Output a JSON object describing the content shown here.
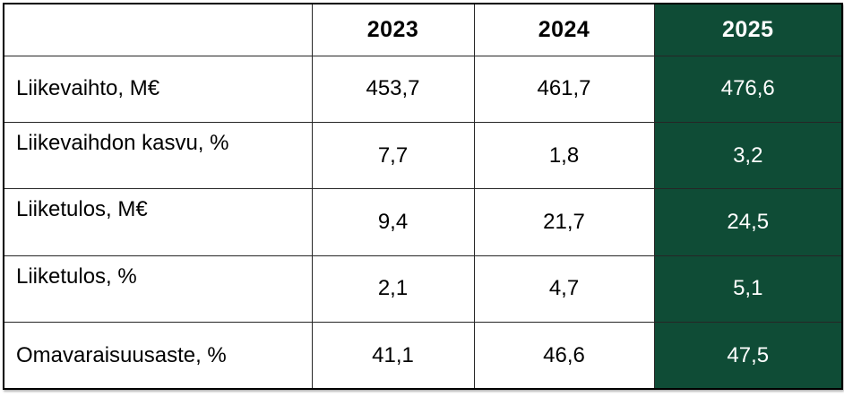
{
  "colors": {
    "highlight_bg": "#0F4C36",
    "highlight_text": "#FFFFFF",
    "border": "#262626",
    "text": "#000000",
    "background": "#FFFFFF"
  },
  "table": {
    "columns": [
      "",
      "2023",
      "2024",
      "2025"
    ],
    "highlight_column": "2025",
    "rows": [
      {
        "label": "Liikevaihto, M€",
        "values": [
          "453,7",
          "461,7",
          "476,6"
        ]
      },
      {
        "label": "Liikevaihdon kasvu, %",
        "values": [
          "7,7",
          "1,8",
          "3,2"
        ]
      },
      {
        "label": "Liiketulos, M€",
        "values": [
          "9,4",
          "21,7",
          "24,5"
        ]
      },
      {
        "label": "Liiketulos, %",
        "values": [
          "2,1",
          "4,7",
          "5,1"
        ]
      },
      {
        "label": "Omavaraisuusaste, %",
        "values": [
          "41,1",
          "46,6",
          "47,5"
        ]
      }
    ]
  },
  "chart_data": {
    "type": "table",
    "title": "",
    "categories": [
      "2023",
      "2024",
      "2025"
    ],
    "series": [
      {
        "name": "Liikevaihto, M€",
        "values": [
          453.7,
          461.7,
          476.6
        ]
      },
      {
        "name": "Liikevaihdon kasvu, %",
        "values": [
          7.7,
          1.8,
          3.2
        ]
      },
      {
        "name": "Liiketulos, M€",
        "values": [
          9.4,
          21.7,
          24.5
        ]
      },
      {
        "name": "Liiketulos, %",
        "values": [
          2.1,
          4.7,
          5.1
        ]
      },
      {
        "name": "Omavaraisuusaste, %",
        "values": [
          41.1,
          46.6,
          47.5
        ]
      }
    ],
    "highlight_column": "2025",
    "layout_hints": "last column highlighted dark green with white text; header row bold; decimal comma formatting"
  }
}
